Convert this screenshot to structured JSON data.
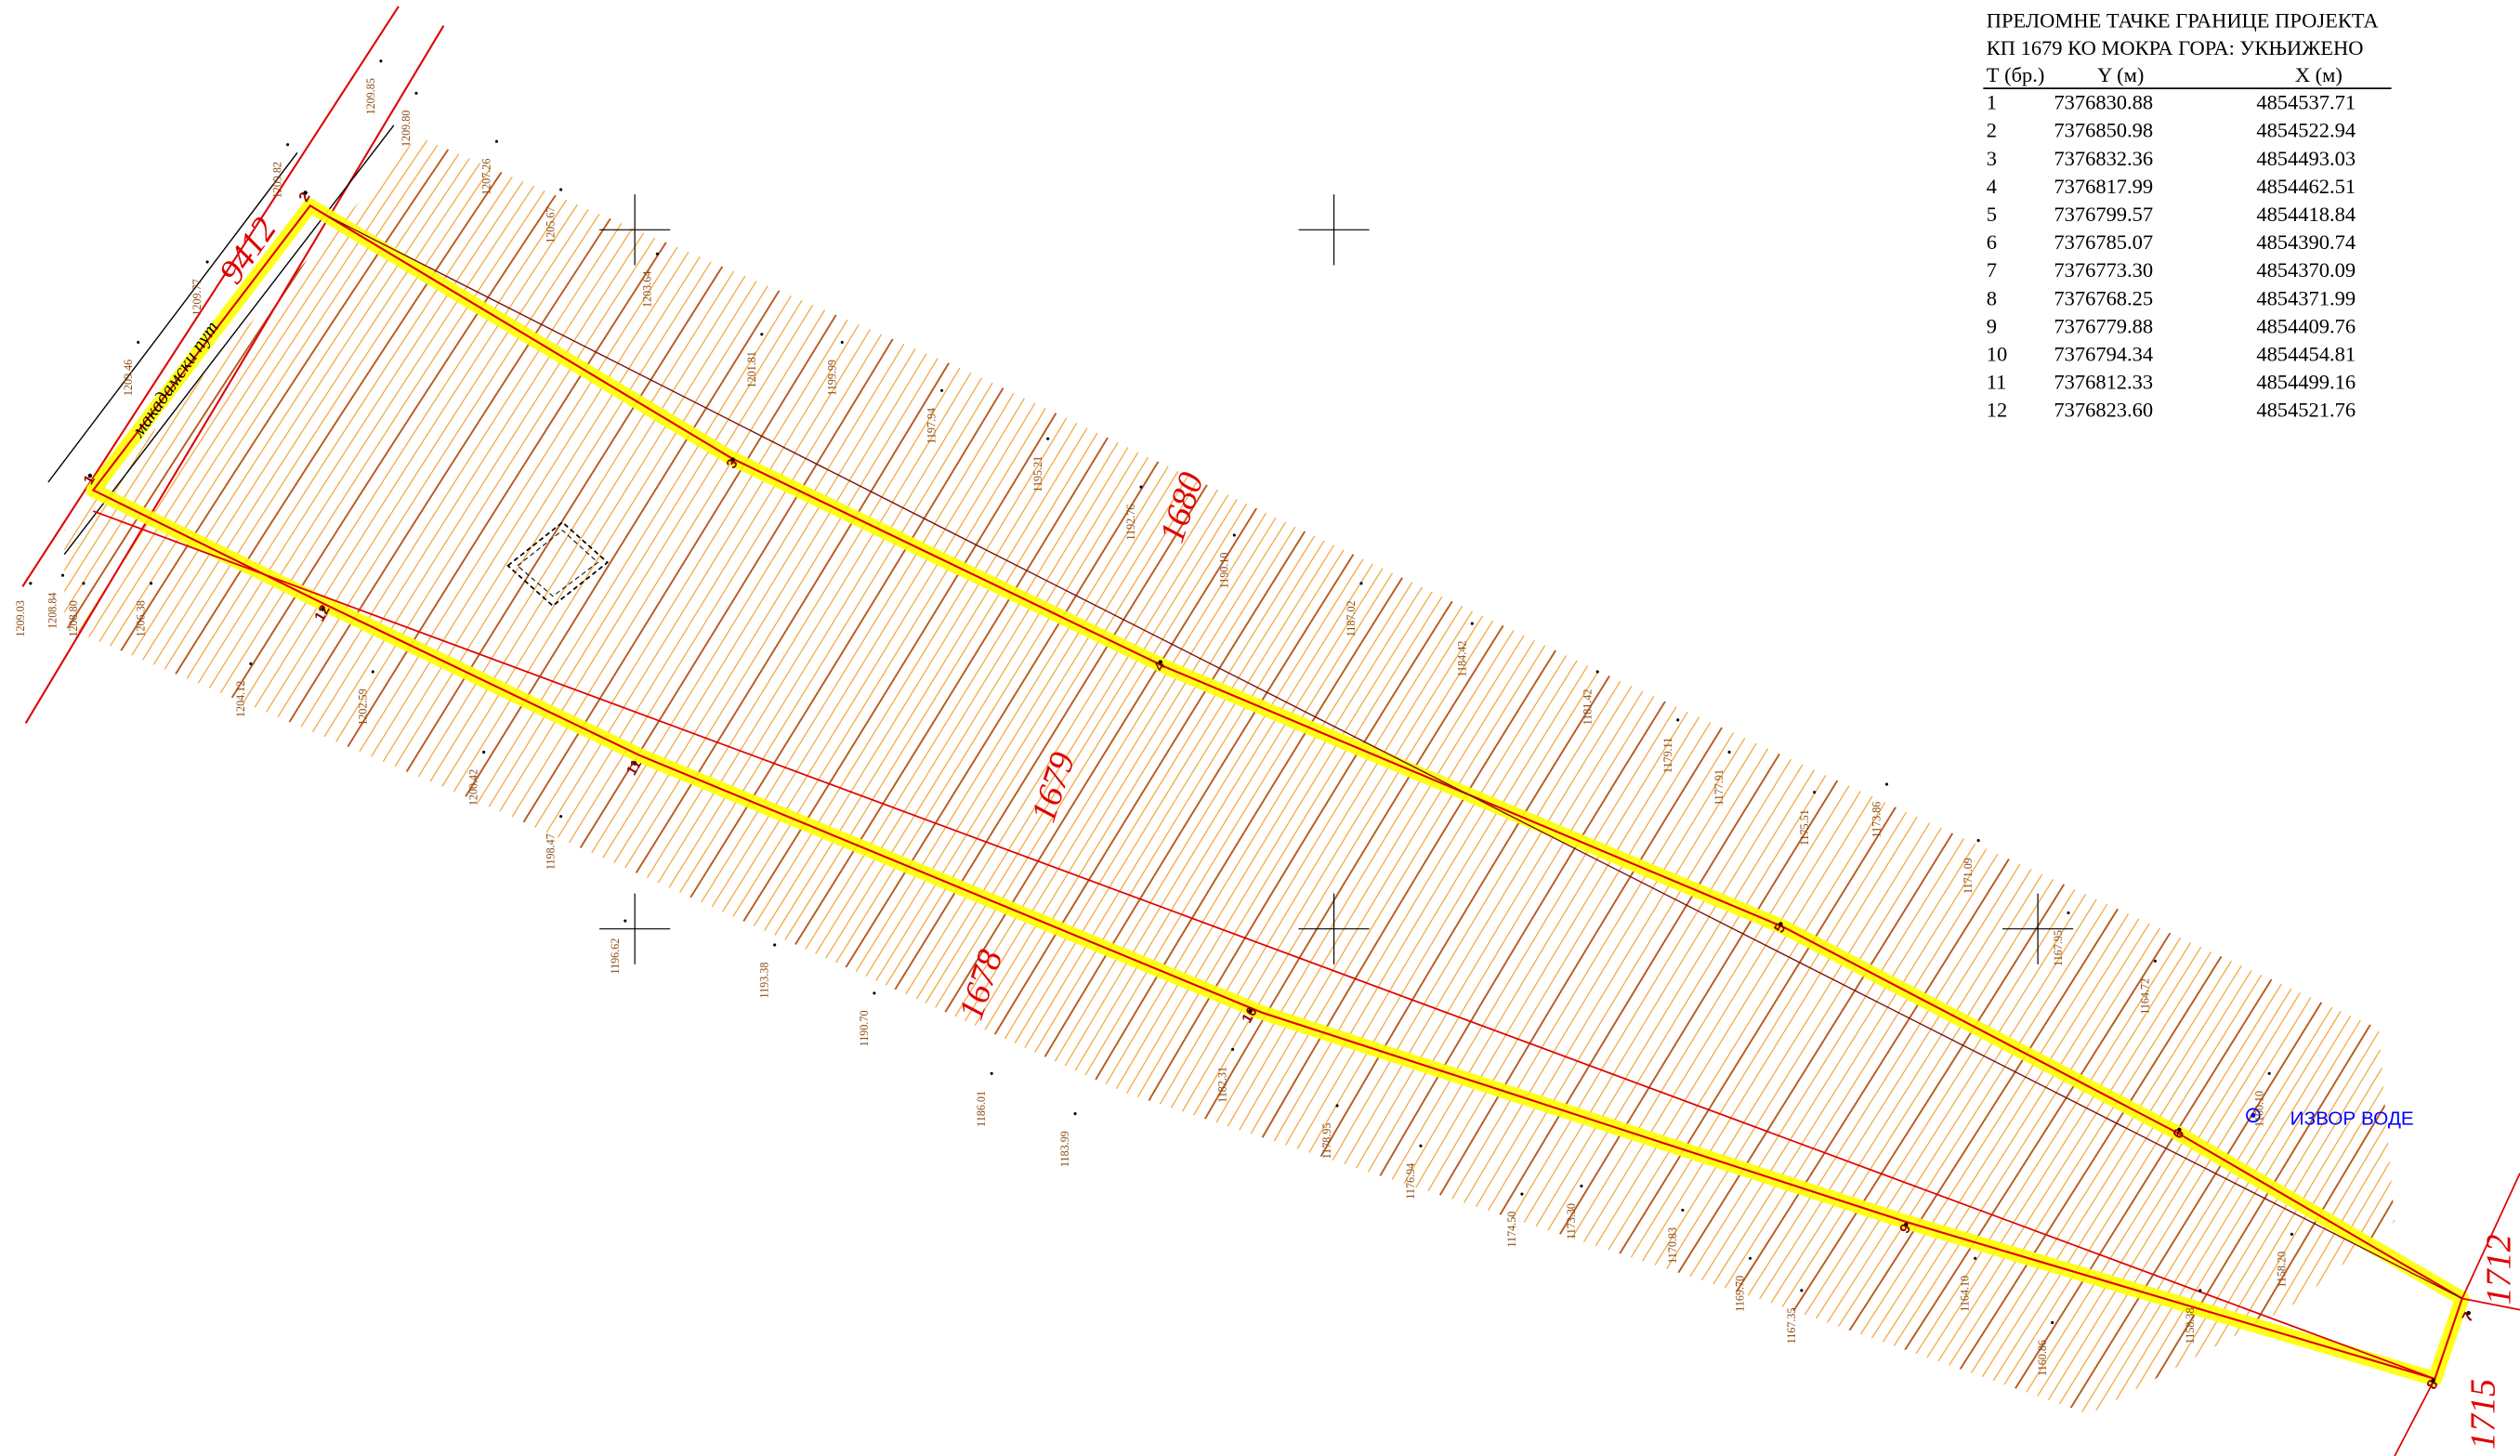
{
  "table": {
    "title": [
      "ПРЕЛОМНЕ ТАЧКЕ ГРАНИЦЕ ПРОЈЕКТА",
      "КП 1679 КО МОКРА ГОРА: УКЊИЖЕНО"
    ],
    "header": [
      "Т (бр.)",
      "Y (м)",
      "X (м)"
    ],
    "rows": [
      [
        "1",
        "7376830.88",
        "4854537.71"
      ],
      [
        "2",
        "7376850.98",
        "4854522.94"
      ],
      [
        "3",
        "7376832.36",
        "4854493.03"
      ],
      [
        "4",
        "7376817.99",
        "4854462.51"
      ],
      [
        "5",
        "7376799.57",
        "4854418.84"
      ],
      [
        "6",
        "7376785.07",
        "4854390.74"
      ],
      [
        "7",
        "7376773.30",
        "4854370.09"
      ],
      [
        "8",
        "7376768.25",
        "4854371.99"
      ],
      [
        "9",
        "7376779.88",
        "4854409.76"
      ],
      [
        "10",
        "7376794.34",
        "4854454.81"
      ],
      [
        "11",
        "7376812.33",
        "4854499.16"
      ],
      [
        "12",
        "7376823.60",
        "4854521.76"
      ]
    ]
  },
  "parcels": [
    "9412",
    "1680",
    "1679",
    "1678",
    "1712",
    "1715"
  ],
  "road": "макадамски пут",
  "spring": "ИЗВОР ВОДЕ",
  "points": [
    "1",
    "2",
    "3",
    "4",
    "5",
    "6",
    "7",
    "8",
    "9",
    "10",
    "11",
    "12"
  ],
  "elevations": [
    "1209.85",
    "1209.80",
    "1209.82",
    "1209.77",
    "1209.46",
    "1209.03",
    "1208.84",
    "1208.80",
    "1207.26",
    "1205.67",
    "1203.64",
    "1201.81",
    "1199.99",
    "1197.94",
    "1195.21",
    "1192.76",
    "1190.10",
    "1187.02",
    "1184.42",
    "1181.42",
    "1179.11",
    "1177.91",
    "1175.51",
    "1173.86",
    "1171.09",
    "1167.95",
    "1164.72",
    "1206.38",
    "1204.12",
    "1202.59",
    "1200.42",
    "1198.47",
    "1196.62",
    "1193.38",
    "1190.70",
    "1186.01",
    "1183.99",
    "1182.31",
    "1178.95",
    "1176.94",
    "1174.50",
    "1173.30",
    "1170.83",
    "1169.70",
    "1167.35",
    "1164.10",
    "1160.86",
    "1158.38",
    "1158.20",
    "1160.10"
  ]
}
